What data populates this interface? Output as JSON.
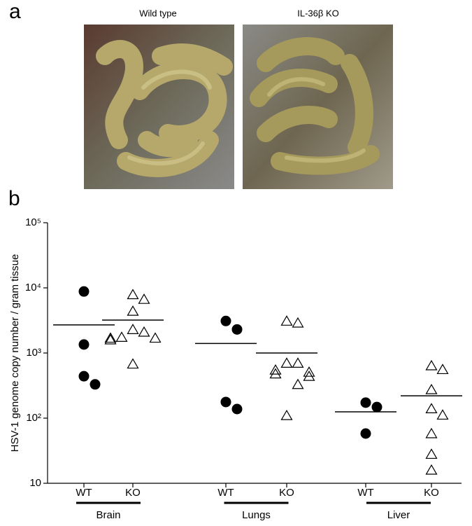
{
  "figure": {
    "panel_a": {
      "label": "a",
      "photos": [
        {
          "caption": "Wild type"
        },
        {
          "caption": "IL-36β KO"
        }
      ]
    },
    "panel_b": {
      "label": "b"
    }
  },
  "chart_data": {
    "type": "dotplot",
    "y_label": "HSV-1 genome copy number / gram tissue",
    "groups": [
      "Brain",
      "Lungs",
      "Liver"
    ],
    "categories": [
      "WT",
      "KO",
      "WT",
      "KO",
      "WT",
      "KO"
    ],
    "values": [
      [
        8800,
        1350,
        440,
        330
      ],
      [
        7900,
        6700,
        4400,
        2300,
        2100,
        1750,
        1700,
        1700,
        1600,
        680
      ],
      [
        3100,
        2300,
        177,
        138
      ],
      [
        3100,
        2900,
        700,
        700,
        550,
        510,
        480,
        440,
        330,
        110
      ],
      [
        173,
        148,
        58
      ],
      [
        640,
        560,
        275,
        140,
        112,
        58,
        28,
        16
      ]
    ],
    "means": [
      2700,
      3200,
      1400,
      1000,
      125,
      220
    ],
    "log_scale": true,
    "ylim": [
      10,
      100000
    ],
    "yticks": [
      10,
      {
        "value": 100,
        "label": "10²"
      },
      {
        "value": 1000,
        "label": "10³"
      },
      {
        "value": 10000,
        "label": "10⁴"
      },
      {
        "value": 100000,
        "label": "10⁵"
      }
    ],
    "color": "#000000"
  }
}
